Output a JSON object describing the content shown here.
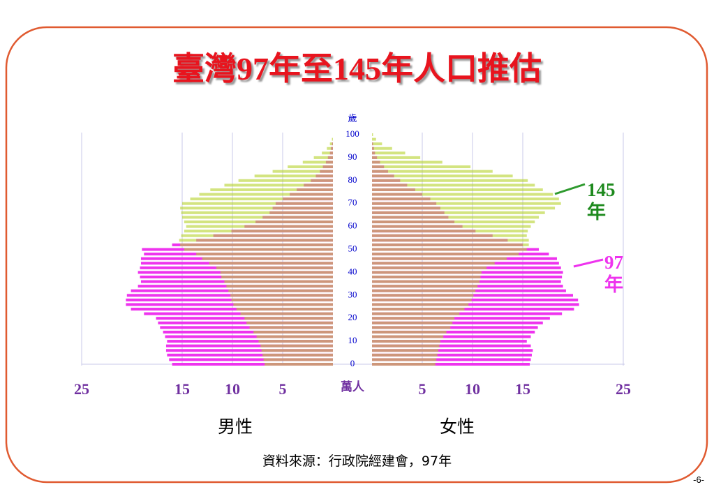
{
  "header": {
    "title": "臺灣97年至145年人口推估"
  },
  "chart_data": {
    "type": "pyramid",
    "age_label": "歲",
    "unit_label": "萬人",
    "left_label": "男性",
    "right_label": "女性",
    "source": "資料來源：行政院經建會，97年",
    "ages": [
      0,
      2,
      4,
      6,
      8,
      10,
      12,
      14,
      16,
      18,
      20,
      22,
      24,
      26,
      28,
      30,
      32,
      34,
      36,
      38,
      40,
      42,
      44,
      46,
      48,
      50,
      52,
      54,
      56,
      58,
      60,
      62,
      64,
      66,
      68,
      70,
      72,
      74,
      76,
      78,
      80,
      82,
      84,
      86,
      88,
      90,
      92,
      94,
      96,
      98,
      100
    ],
    "ylim": [
      0,
      100
    ],
    "yticks": [
      0,
      10,
      20,
      30,
      40,
      50,
      60,
      70,
      80,
      90,
      100
    ],
    "xlim": [
      0,
      25
    ],
    "xticks": [
      5,
      10,
      15,
      25
    ],
    "grid": true,
    "series": [
      {
        "name": "97年",
        "color": "#ee33ee",
        "male": [
          16.0,
          16.3,
          16.5,
          16.6,
          16.6,
          16.5,
          16.7,
          16.9,
          17.2,
          17.4,
          17.6,
          18.8,
          20.1,
          20.6,
          20.6,
          20.5,
          20.1,
          19.4,
          19.1,
          19.2,
          19.4,
          19.2,
          19.1,
          19.1,
          18.8,
          19.0,
          16.0,
          13.6,
          11.9,
          10.1,
          8.8,
          7.7,
          7.0,
          6.3,
          6.0,
          5.7,
          5.0,
          4.3,
          3.6,
          2.9,
          2.2,
          1.7,
          1.3,
          1.0,
          0.7,
          0.5,
          0.3,
          0.2,
          0.1,
          0.0,
          0.0
        ],
        "female": [
          15.7,
          15.8,
          15.9,
          16.0,
          15.8,
          15.4,
          15.8,
          16.2,
          16.5,
          17.0,
          17.7,
          18.9,
          20.1,
          20.6,
          20.5,
          20.0,
          19.3,
          19.0,
          18.8,
          18.9,
          19.0,
          18.8,
          18.6,
          18.4,
          17.6,
          16.6,
          15.0,
          13.5,
          12.0,
          10.3,
          9.0,
          8.2,
          7.6,
          7.2,
          6.8,
          6.4,
          5.8,
          5.0,
          4.3,
          3.5,
          2.8,
          2.2,
          1.6,
          1.2,
          0.8,
          0.5,
          0.3,
          0.2,
          0.1,
          0.0,
          0.0
        ]
      },
      {
        "name": "145年",
        "color": "#b8d432",
        "male": [
          6.8,
          6.9,
          7.0,
          7.1,
          7.2,
          7.4,
          7.6,
          7.9,
          8.3,
          8.6,
          8.8,
          9.2,
          9.6,
          9.9,
          10.1,
          10.2,
          10.4,
          10.6,
          10.8,
          11.1,
          11.2,
          11.6,
          12.3,
          13.0,
          13.6,
          14.8,
          15.2,
          15.3,
          15.1,
          14.8,
          14.6,
          14.8,
          15.0,
          15.1,
          15.2,
          15.0,
          14.2,
          13.3,
          12.2,
          10.8,
          9.4,
          7.8,
          6.0,
          4.5,
          3.0,
          1.9,
          1.1,
          0.6,
          0.3,
          0.1,
          0.0
        ],
        "female": [
          6.3,
          6.4,
          6.5,
          6.6,
          6.7,
          6.8,
          7.1,
          7.4,
          7.8,
          8.0,
          8.2,
          8.7,
          9.2,
          9.6,
          9.9,
          10.1,
          10.3,
          10.5,
          10.7,
          10.8,
          10.9,
          11.4,
          12.2,
          13.4,
          14.6,
          15.4,
          15.6,
          15.6,
          15.4,
          15.5,
          15.8,
          16.2,
          16.6,
          17.2,
          18.2,
          18.8,
          18.6,
          18.0,
          17.0,
          16.2,
          15.5,
          14.0,
          12.0,
          9.8,
          7.0,
          4.8,
          3.3,
          2.0,
          1.0,
          0.4,
          0.1
        ]
      }
    ]
  },
  "footer": {
    "page": "-6-"
  }
}
